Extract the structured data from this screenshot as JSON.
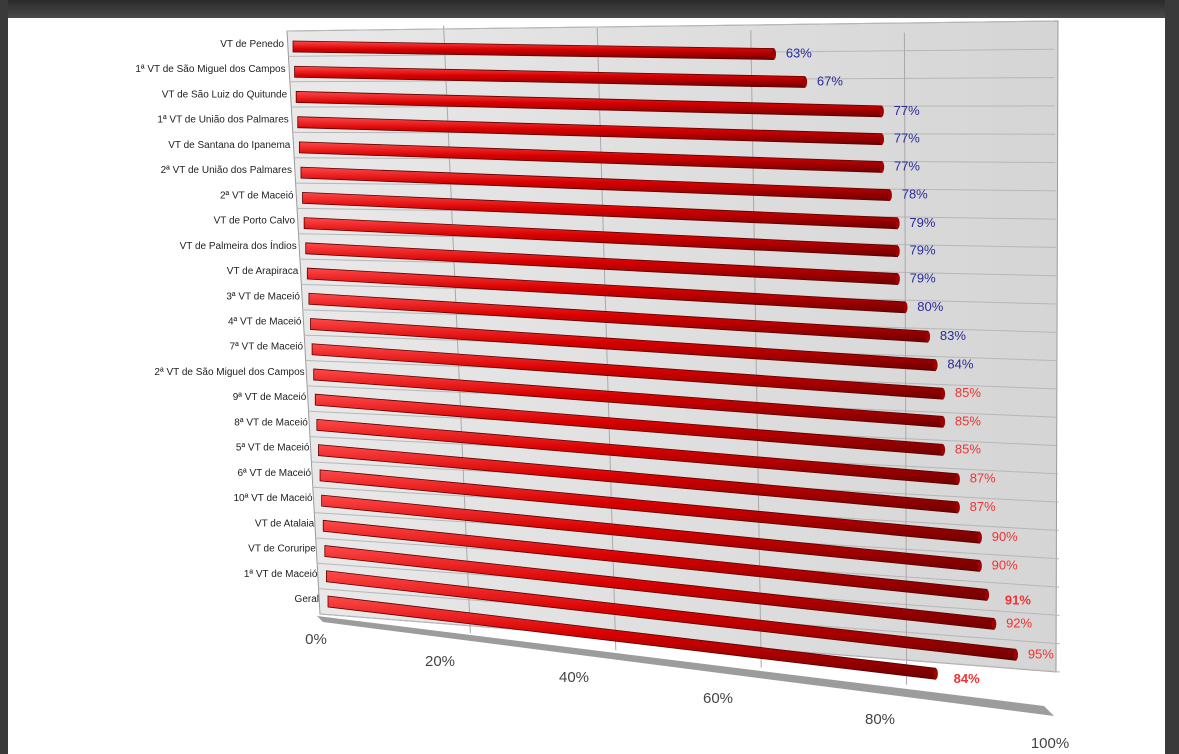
{
  "chart_data": {
    "type": "bar",
    "orientation": "horizontal",
    "style": "3d",
    "categories": [
      "VT de Penedo",
      "1ª VT de São Miguel dos Campos",
      "VT de São Luiz do Quitunde",
      "1ª VT de União dos Palmares",
      "VT de Santana do Ipanema",
      "2ª VT de União dos Palmares",
      "2ª VT de Maceió",
      "VT de Porto Calvo",
      "VT de Palmeira dos Índios",
      "VT de Arapiraca",
      "3ª VT de Maceió",
      "4ª VT de Maceió",
      "7ª VT de Maceió",
      "2ª VT de São Miguel dos Campos",
      "9ª VT de Maceió",
      "8ª VT de Maceió",
      "5ª VT de Maceió",
      "6ª VT de Maceió",
      "10ª VT de Maceió",
      "VT de Atalaia",
      "VT de Coruripe",
      "1ª VT de Maceió",
      "Geral"
    ],
    "values": [
      63,
      67,
      77,
      77,
      77,
      78,
      79,
      79,
      79,
      80,
      83,
      84,
      85,
      85,
      85,
      87,
      87,
      90,
      90,
      91,
      92,
      95,
      84
    ],
    "value_labels": [
      "63%",
      "67%",
      "77%",
      "77%",
      "77%",
      "78%",
      "79%",
      "79%",
      "79%",
      "80%",
      "83%",
      "84%",
      "85%",
      "85%",
      "85%",
      "87%",
      "87%",
      "90%",
      "90%",
      "91%",
      "92%",
      "95%",
      "84%"
    ],
    "xlim": [
      0,
      100
    ],
    "x_ticks": [
      "0%",
      "20%",
      "40%",
      "60%",
      "80%",
      "100%"
    ],
    "grid": true,
    "bar_color": "#cc0000",
    "label_color_low": "#2b2b9a",
    "label_color_high": "#ee3333"
  }
}
